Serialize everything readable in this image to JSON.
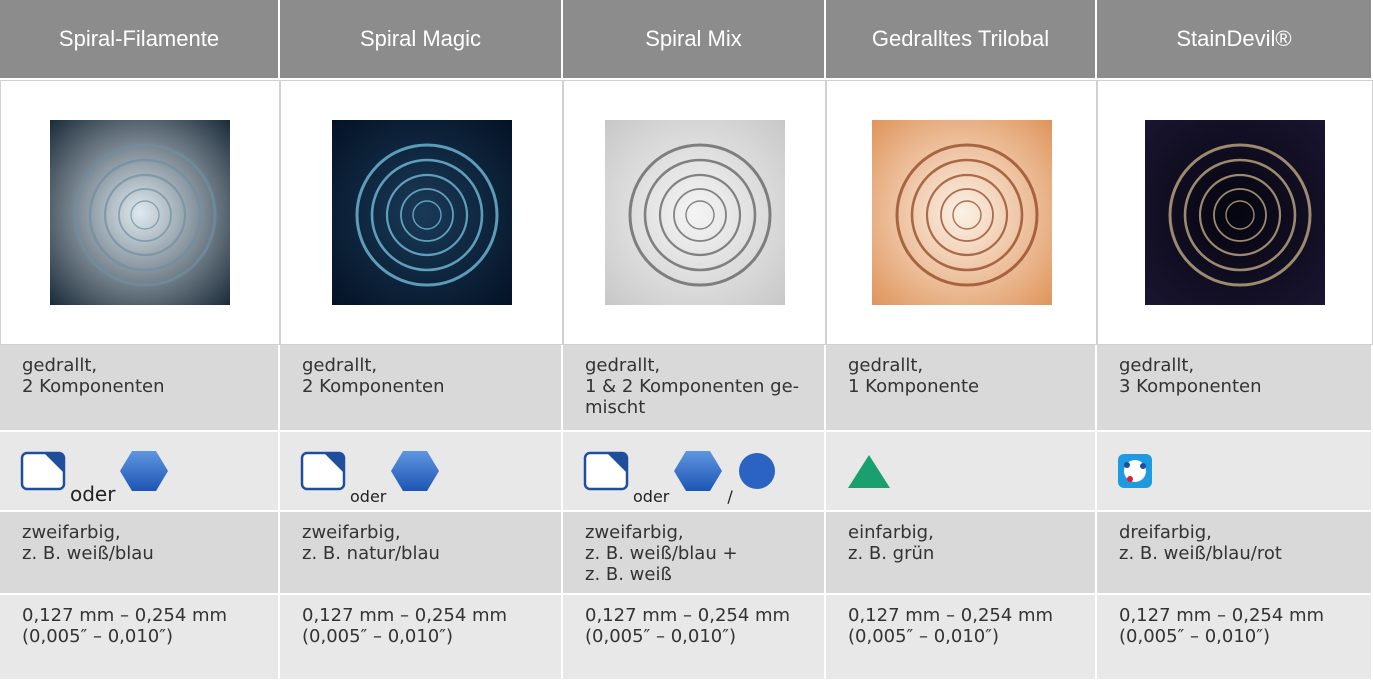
{
  "table": {
    "columns": [
      {
        "header": "Spiral-Filamente",
        "description": [
          "gedrallt,",
          "2 Komponenten"
        ],
        "shape_text": [
          "oder"
        ],
        "color": [
          "zweifarbig,",
          "z. B. weiß/blau"
        ],
        "size": [
          "0,127 mm – 0,254 mm",
          "(0,005″ – 0,010″)"
        ]
      },
      {
        "header": "Spiral Magic",
        "description": [
          "gedrallt,",
          "2 Komponenten"
        ],
        "shape_text": [
          "oder"
        ],
        "color": [
          "zweifarbig,",
          "z. B. natur/blau"
        ],
        "size": [
          "0,127 mm – 0,254 mm",
          "(0,005″ – 0,010″)"
        ]
      },
      {
        "header": "Spiral Mix",
        "description": [
          "gedrallt,",
          "1 & 2 Komponenten ge-",
          "mischt"
        ],
        "shape_text": [
          "oder",
          "/"
        ],
        "color": [
          "zweifarbig,",
          "z. B. weiß/blau +",
          "z. B. weiß"
        ],
        "size": [
          "0,127 mm – 0,254 mm",
          "(0,005″ – 0,010″)"
        ]
      },
      {
        "header": "Gedralltes Trilobal",
        "description": [
          "gedrallt,",
          "1 Komponente"
        ],
        "color": [
          "einfarbig,",
          "z. B. grün"
        ],
        "size": [
          "0,127 mm – 0,254 mm",
          "(0,005″ – 0,010″)"
        ]
      },
      {
        "header": "StainDevil®",
        "description": [
          "gedrallt,",
          "3 Komponenten"
        ],
        "color": [
          "dreifarbig,",
          "z. B. weiß/blau/rot"
        ],
        "size": [
          "0,127 mm – 0,254 mm",
          "(0,005″ – 0,010″)"
        ]
      }
    ]
  }
}
